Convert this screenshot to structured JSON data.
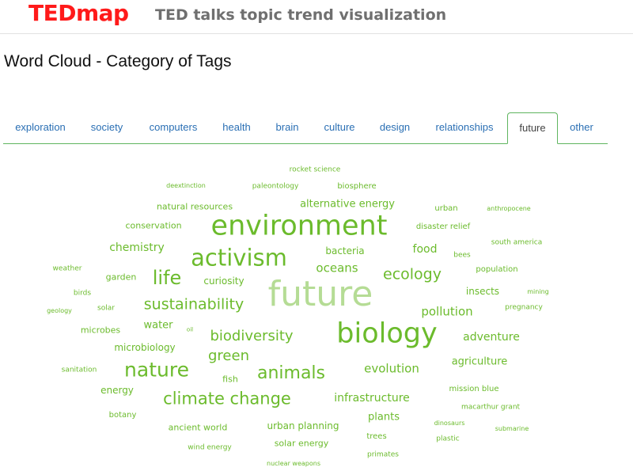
{
  "header": {
    "logo": "TEDmap",
    "tagline": "TED talks topic trend visualization"
  },
  "page_title": "Word Cloud - Category of Tags",
  "tabs": [
    {
      "label": "exploration"
    },
    {
      "label": "society"
    },
    {
      "label": "computers"
    },
    {
      "label": "health"
    },
    {
      "label": "brain"
    },
    {
      "label": "culture"
    },
    {
      "label": "design"
    },
    {
      "label": "relationships"
    },
    {
      "label": "future",
      "active": true
    },
    {
      "label": "other"
    }
  ],
  "colors": {
    "logo": "#ff1a1a",
    "tagline": "#6f6f6f",
    "link": "#2a6fb4",
    "word": "#6bbb2c",
    "word_highlight": "#b5dc95",
    "tab_border": "#5fb55f"
  },
  "word_cloud": [
    "rocket science",
    "deextinction",
    "paleontology",
    "biosphere",
    "natural resources",
    "alternative energy",
    "urban",
    "anthropocene",
    "conservation",
    "environment",
    "disaster relief",
    "chemistry",
    "activism",
    "bacteria",
    "food",
    "south america",
    "bees",
    "weather",
    "garden",
    "life",
    "curiosity",
    "oceans",
    "ecology",
    "population",
    "birds",
    "future",
    "insects",
    "mining",
    "solar",
    "sustainability",
    "pollution",
    "pregnancy",
    "geology",
    "water",
    "oil",
    "biology",
    "microbes",
    "biodiversity",
    "adventure",
    "microbiology",
    "green",
    "agriculture",
    "sanitation",
    "nature",
    "fish",
    "animals",
    "evolution",
    "energy",
    "mission blue",
    "climate change",
    "infrastructure",
    "botany",
    "macarthur grant",
    "plants",
    "dinosaurs",
    "ancient world",
    "urban planning",
    "submarine",
    "trees",
    "plastic",
    "solar energy",
    "wind energy",
    "primates",
    "nuclear weapons"
  ]
}
